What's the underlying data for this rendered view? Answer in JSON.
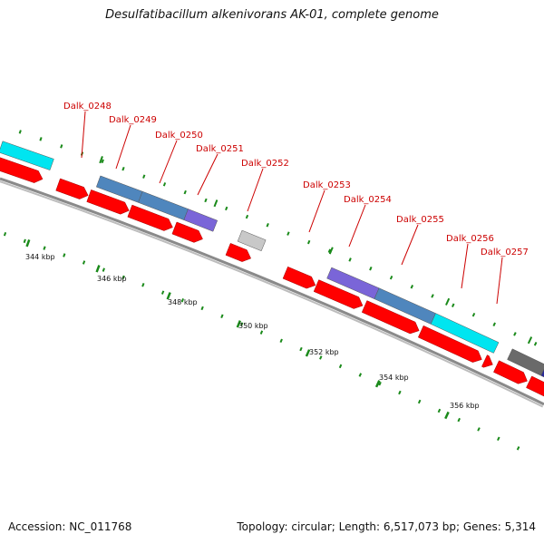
{
  "title": "Desulfatibacillum alkenivorans AK-01, complete genome",
  "footer": {
    "accession": "Accession: NC_011768",
    "summary": "Topology: circular; Length: 6,517,073 bp; Genes: 5,314"
  },
  "scale_labels": [
    "344 kbp",
    "346 kbp",
    "348 kbp",
    "350 kbp",
    "352 kbp",
    "354 kbp",
    "356 kbp"
  ],
  "gene_labels": [
    "Dalk_0248",
    "Dalk_0249",
    "Dalk_0250",
    "Dalk_0251",
    "Dalk_0252",
    "Dalk_0253",
    "Dalk_0254",
    "Dalk_0255",
    "Dalk_0256",
    "Dalk_0257"
  ],
  "colors": {
    "cds": "#ff0000",
    "cyan": "#00e5f0",
    "steelblue": "#4f86bd",
    "purple": "#7a65d8",
    "lightgray": "#c8c8c8",
    "darkgray": "#6a6a6a",
    "navy": "#2a2a9a",
    "tick": "#1a8a1a",
    "backbone": "#8a8a8a",
    "label": "#cc0000"
  }
}
